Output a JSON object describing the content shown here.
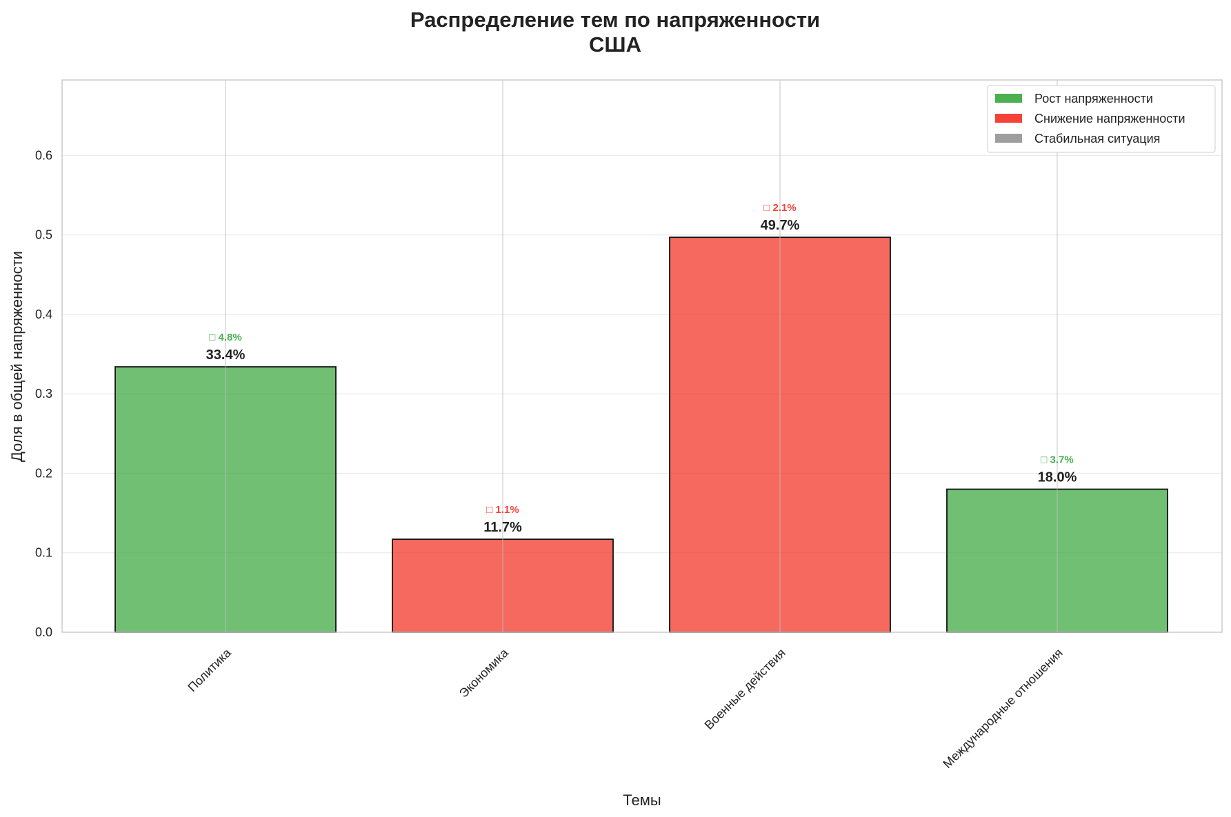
{
  "chart_data": {
    "type": "bar",
    "title": "Распределение тем по напряженности",
    "subtitle": "США",
    "xlabel": "Темы",
    "ylabel": "Доля в общей напряженности",
    "ylim": [
      0,
      0.695
    ],
    "yticks": [
      "0.0",
      "0.1",
      "0.2",
      "0.3",
      "0.4",
      "0.5",
      "0.6"
    ],
    "ytick_values": [
      0,
      0.1,
      0.2,
      0.3,
      0.4,
      0.5,
      0.6
    ],
    "grid": true,
    "legend_position": "top-right",
    "categories": [
      "Политика",
      "Экономика",
      "Военные действия",
      "Международные отношения"
    ],
    "values": [
      0.334,
      0.117,
      0.497,
      0.18
    ],
    "value_labels": [
      "33.4%",
      "11.7%",
      "49.7%",
      "18.0%"
    ],
    "trends": [
      "rise",
      "fall",
      "fall",
      "rise"
    ],
    "change_labels": [
      "□ 4.8%",
      "□ 1.1%",
      "□ 2.1%",
      "□ 3.7%"
    ],
    "legend": [
      {
        "key": "rise",
        "label": "Рост напряженности",
        "color": "#4caf50"
      },
      {
        "key": "fall",
        "label": "Снижение напряженности",
        "color": "#f44336"
      },
      {
        "key": "stable",
        "label": "Стабильная ситуация",
        "color": "#9e9e9e"
      }
    ]
  }
}
